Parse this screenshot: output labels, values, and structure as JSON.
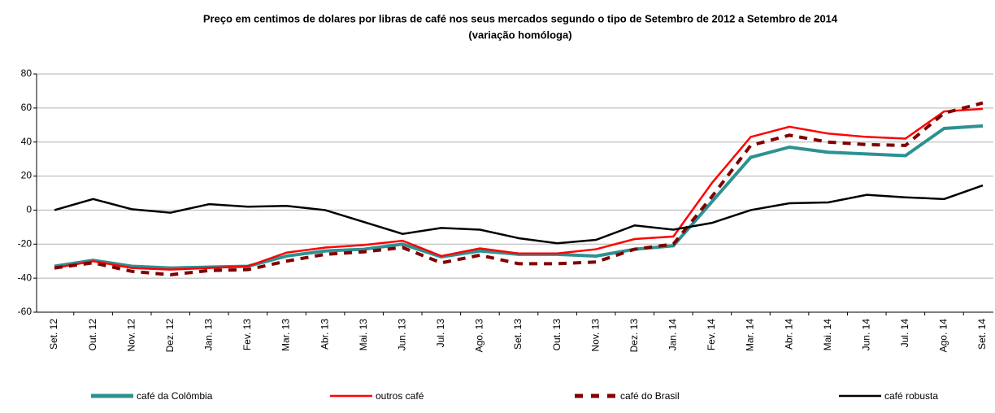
{
  "chart_data": {
    "type": "line",
    "title": "Preço em centimos de dolares por libras de café nos seus mercados segundo o tipo de Setembro de 2012 a Setembro de 2014",
    "subtitle": "(variação homóloga)",
    "categories": [
      "Set. 12",
      "Out. 12",
      "Nov. 12",
      "Dez. 12",
      "Jan. 13",
      "Fev. 13",
      "Mar. 13",
      "Abr. 13",
      "Mai. 13",
      "Jun. 13",
      "Jul. 13",
      "Ago. 13",
      "Set. 13",
      "Out. 13",
      "Nov. 13",
      "Dez. 13",
      "Jan. 14",
      "Fev. 14",
      "Mar. 14",
      "Abr. 14",
      "Mai. 14",
      "Jun. 14",
      "Jul. 14",
      "Ago. 14",
      "Set. 14"
    ],
    "series": [
      {
        "name": "café da Colômbia",
        "color": "#2e9191",
        "values": [
          -33,
          -29.5,
          -33,
          -34,
          -33.5,
          -33,
          -27,
          -24,
          -23,
          -20,
          -27.5,
          -24,
          -26,
          -26,
          -27,
          -23,
          -21,
          5,
          31,
          37,
          34,
          33,
          32,
          48,
          49.5
        ]
      },
      {
        "name": "outros café",
        "color": "#ff0000",
        "values": [
          -34,
          -30,
          -34,
          -35,
          -34,
          -33,
          -25,
          -22,
          -20.5,
          -18,
          -27,
          -22.5,
          -25.5,
          -25.5,
          -23,
          -17,
          -15.5,
          16,
          43,
          49,
          45,
          43,
          42,
          58,
          59.5
        ]
      },
      {
        "name": "café do Brasil",
        "color": "#800000",
        "dashed": true,
        "values": [
          -34,
          -31,
          -36,
          -38,
          -35.5,
          -35,
          -30,
          -26,
          -24.5,
          -22,
          -31,
          -26.5,
          -31.5,
          -31.5,
          -30.5,
          -23,
          -20,
          8,
          38,
          44,
          40,
          38.5,
          38,
          57,
          63
        ]
      },
      {
        "name": "café robusta",
        "color": "#000000",
        "values": [
          0,
          6.5,
          0.5,
          -1.5,
          3.5,
          2,
          2.5,
          0,
          -7,
          -14,
          -10.5,
          -11.5,
          -16.5,
          -19.5,
          -17.5,
          -9,
          -11.5,
          -7.5,
          0,
          4,
          4.5,
          9,
          7.5,
          6.5,
          14.5
        ]
      }
    ],
    "ylim": [
      -60,
      80
    ],
    "yticks": [
      -60,
      -40,
      -20,
      0,
      20,
      40,
      60,
      80
    ],
    "grid": true
  }
}
